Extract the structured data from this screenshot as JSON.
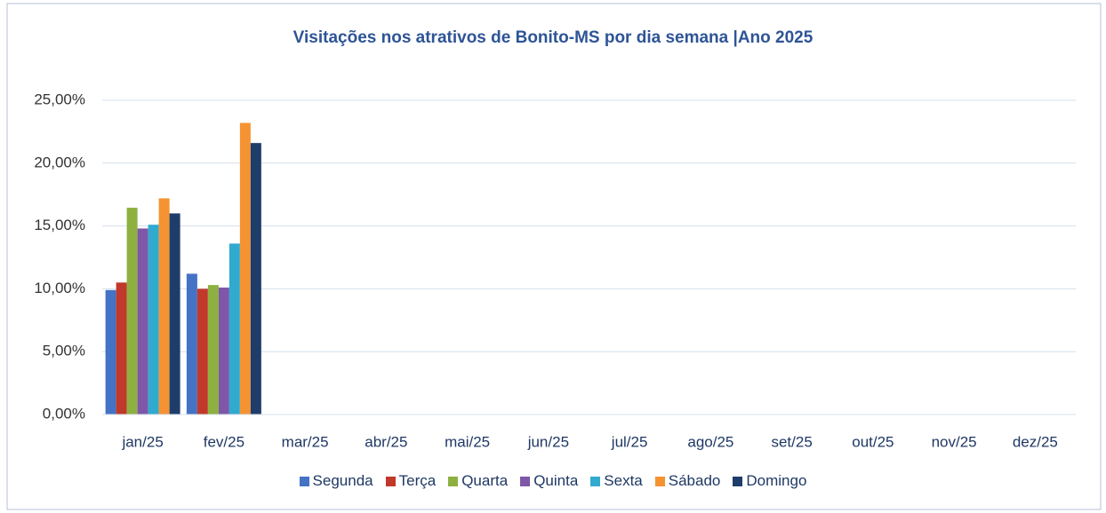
{
  "chart_data": {
    "type": "bar",
    "title": "Visitações nos atrativos de Bonito-MS por dia semana |Ano 2025",
    "categories": [
      "jan/25",
      "fev/25",
      "mar/25",
      "abr/25",
      "mai/25",
      "jun/25",
      "jul/25",
      "ago/25",
      "set/25",
      "out/25",
      "nov/25",
      "dez/25"
    ],
    "series": [
      {
        "name": "Segunda",
        "color": "#4472c4",
        "values": [
          9.9,
          11.2,
          null,
          null,
          null,
          null,
          null,
          null,
          null,
          null,
          null,
          null
        ]
      },
      {
        "name": "Terça",
        "color": "#c0392b",
        "values": [
          10.5,
          10.0,
          null,
          null,
          null,
          null,
          null,
          null,
          null,
          null,
          null,
          null
        ]
      },
      {
        "name": "Quarta",
        "color": "#8db040",
        "values": [
          16.45,
          10.3,
          null,
          null,
          null,
          null,
          null,
          null,
          null,
          null,
          null,
          null
        ]
      },
      {
        "name": "Quinta",
        "color": "#7e57a8",
        "values": [
          14.8,
          10.1,
          null,
          null,
          null,
          null,
          null,
          null,
          null,
          null,
          null,
          null
        ]
      },
      {
        "name": "Sexta",
        "color": "#31aad0",
        "values": [
          15.1,
          13.6,
          null,
          null,
          null,
          null,
          null,
          null,
          null,
          null,
          null,
          null
        ]
      },
      {
        "name": "Sábado",
        "color": "#f59332",
        "values": [
          17.2,
          23.2,
          null,
          null,
          null,
          null,
          null,
          null,
          null,
          null,
          null,
          null
        ]
      },
      {
        "name": "Domingo",
        "color": "#1f3d6b",
        "values": [
          16.0,
          21.6,
          null,
          null,
          null,
          null,
          null,
          null,
          null,
          null,
          null,
          null
        ]
      }
    ],
    "ylim": [
      0,
      25
    ],
    "yticks": [
      {
        "value": 0,
        "label": "0,00%"
      },
      {
        "value": 5,
        "label": "5,00%"
      },
      {
        "value": 10,
        "label": "10,00%"
      },
      {
        "value": 15,
        "label": "15,00%"
      },
      {
        "value": 20,
        "label": "20,00%"
      },
      {
        "value": 25,
        "label": "25,00%"
      }
    ],
    "grid": true,
    "legend": "bottom"
  }
}
